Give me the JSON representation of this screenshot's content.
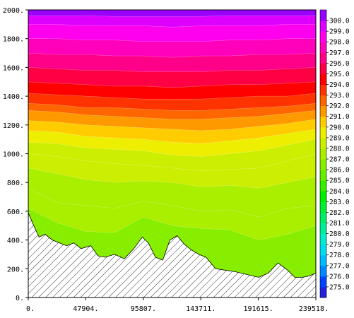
{
  "chart_data": {
    "type": "area",
    "title": "",
    "xlabel": "",
    "ylabel": "",
    "xlim": [
      0,
      239518
    ],
    "ylim": [
      0,
      2000
    ],
    "grid": false,
    "x_tick_values": [
      0,
      47904,
      95807,
      143711,
      191615,
      239518
    ],
    "x_tick_labels": [
      "0.",
      "47904.",
      "95807.",
      "143711.",
      "191615.",
      "239518."
    ],
    "y_tick_values": [
      0,
      200,
      400,
      600,
      800,
      1000,
      1200,
      1400,
      1600,
      1800,
      2000
    ],
    "y_tick_labels": [
      "0.",
      "200.",
      "400.",
      "600.",
      "800.",
      "1000.",
      "1200.",
      "1400.",
      "1600.",
      "1800.",
      "2000."
    ],
    "terrain": {
      "x": [
        0,
        4000,
        9000,
        14000,
        20000,
        26000,
        32000,
        38000,
        44000,
        52000,
        58000,
        64000,
        72000,
        80000,
        88000,
        95000,
        100000,
        106000,
        112000,
        118000,
        124000,
        130000,
        136000,
        142000,
        148000,
        156000,
        164000,
        172000,
        182000,
        192000,
        200000,
        208000,
        216000,
        222000,
        228000,
        234000,
        239518
      ],
      "y": [
        590,
        510,
        420,
        440,
        400,
        380,
        360,
        380,
        340,
        360,
        290,
        280,
        300,
        270,
        340,
        420,
        380,
        280,
        260,
        400,
        430,
        370,
        330,
        300,
        280,
        200,
        190,
        180,
        160,
        140,
        170,
        240,
        190,
        140,
        140,
        150,
        170
      ]
    },
    "colorbar": {
      "labels": [
        "275.0",
        "276.0",
        "277.0",
        "278.0",
        "279.0",
        "280.0",
        "281.0",
        "282.0",
        "283.0",
        "284.0",
        "285.0",
        "286.0",
        "287.0",
        "288.0",
        "289.0",
        "290.0",
        "291.0",
        "292.0",
        "293.0",
        "294.0",
        "295.0",
        "296.0",
        "297.0",
        "298.0",
        "299.0",
        "300.0"
      ],
      "colors": [
        "#2222dd",
        "#0044ff",
        "#0088ff",
        "#00bbff",
        "#00ddee",
        "#00eecc",
        "#00ee99",
        "#00ee66",
        "#00ee33",
        "#00ee00",
        "#33ee00",
        "#66ee00",
        "#88ee00",
        "#aaee00",
        "#ccee00",
        "#eeee00",
        "#ffcc00",
        "#ff9900",
        "#ff6600",
        "#ff3300",
        "#ff0000",
        "#ff0044",
        "#ff0088",
        "#ff00bb",
        "#ff00ee",
        "#dd00ff",
        "#9900ff"
      ]
    },
    "levels_by_column": {
      "x": [
        0,
        24000,
        48000,
        72000,
        96000,
        120000,
        144000,
        168000,
        192000,
        216000,
        239518
      ],
      "temperature_bands": [
        {
          "value": 286.0,
          "heights": [
            620,
            520,
            460,
            450,
            560,
            500,
            480,
            470,
            400,
            440,
            500
          ]
        },
        {
          "value": 286.5,
          "heights": [
            760,
            660,
            640,
            620,
            670,
            640,
            600,
            610,
            560,
            620,
            640
          ]
        },
        {
          "value": 287.0,
          "heights": [
            900,
            860,
            820,
            800,
            810,
            800,
            770,
            780,
            760,
            800,
            840
          ]
        },
        {
          "value": 287.5,
          "heights": [
            1000,
            980,
            950,
            930,
            920,
            900,
            880,
            890,
            900,
            950,
            1000
          ]
        },
        {
          "value": 288.0,
          "heights": [
            1080,
            1070,
            1040,
            1030,
            1020,
            990,
            980,
            1000,
            1020,
            1060,
            1100
          ]
        },
        {
          "value": 289.0,
          "heights": [
            1160,
            1150,
            1120,
            1110,
            1100,
            1080,
            1070,
            1090,
            1110,
            1140,
            1170
          ]
        },
        {
          "value": 290.0,
          "heights": [
            1230,
            1220,
            1200,
            1190,
            1180,
            1170,
            1160,
            1170,
            1190,
            1210,
            1240
          ]
        },
        {
          "value": 291.0,
          "heights": [
            1300,
            1290,
            1270,
            1260,
            1250,
            1240,
            1240,
            1250,
            1260,
            1280,
            1300
          ]
        },
        {
          "value": 292.0,
          "heights": [
            1350,
            1340,
            1320,
            1320,
            1310,
            1300,
            1300,
            1310,
            1320,
            1330,
            1350
          ]
        },
        {
          "value": 293.0,
          "heights": [
            1420,
            1410,
            1400,
            1390,
            1380,
            1380,
            1380,
            1390,
            1400,
            1400,
            1420
          ]
        },
        {
          "value": 294.0,
          "heights": [
            1500,
            1490,
            1480,
            1470,
            1470,
            1460,
            1470,
            1480,
            1480,
            1490,
            1500
          ]
        },
        {
          "value": 295.0,
          "heights": [
            1600,
            1590,
            1580,
            1580,
            1570,
            1570,
            1570,
            1580,
            1580,
            1590,
            1600
          ]
        },
        {
          "value": 296.0,
          "heights": [
            1700,
            1690,
            1690,
            1680,
            1680,
            1670,
            1680,
            1680,
            1690,
            1690,
            1700
          ]
        },
        {
          "value": 297.0,
          "heights": [
            1800,
            1800,
            1790,
            1790,
            1780,
            1780,
            1780,
            1790,
            1790,
            1800,
            1800
          ]
        },
        {
          "value": 298.0,
          "heights": [
            1900,
            1900,
            1890,
            1890,
            1890,
            1880,
            1890,
            1890,
            1890,
            1900,
            1900
          ]
        },
        {
          "value": 299.0,
          "heights": [
            1960,
            1960,
            1960,
            1955,
            1955,
            1955,
            1955,
            1960,
            1960,
            1960,
            1960
          ]
        },
        {
          "value": 300.0,
          "heights": [
            2000,
            2000,
            2000,
            2000,
            2000,
            2000,
            2000,
            2000,
            2000,
            2000,
            2000
          ]
        }
      ]
    }
  }
}
